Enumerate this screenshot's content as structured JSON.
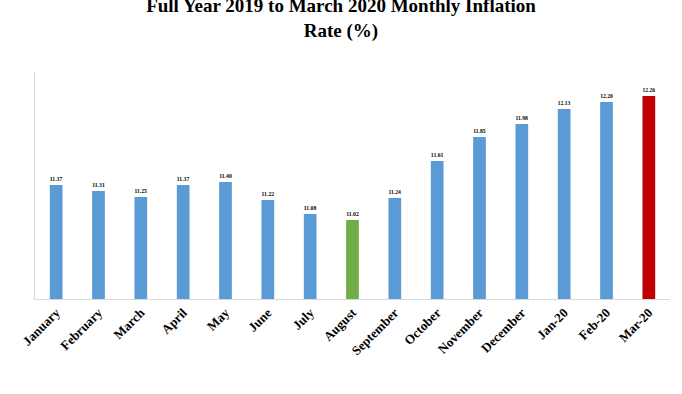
{
  "chart_data": {
    "type": "bar",
    "title": "Full Year 2019 to March 2020 Monthly Inflation Rate (%)",
    "categories": [
      "January",
      "February",
      "March",
      "April",
      "May",
      "June",
      "July",
      "August",
      "September",
      "October",
      "November",
      "December",
      "Jan-20",
      "Feb-20",
      "Mar-20"
    ],
    "values": [
      11.37,
      11.31,
      11.25,
      11.37,
      11.4,
      11.22,
      11.08,
      11.02,
      11.24,
      11.61,
      11.85,
      11.98,
      12.13,
      12.2,
      12.26
    ],
    "value_labels": [
      "11.37",
      "11.31",
      "11.25",
      "11.37",
      "11.40",
      "11.22",
      "11.08",
      "11.02",
      "11.24",
      "11.61",
      "11.85",
      "11.98",
      "12.13",
      "12.20",
      "12.26"
    ],
    "colors": [
      "#5b9bd5",
      "#5b9bd5",
      "#5b9bd5",
      "#5b9bd5",
      "#5b9bd5",
      "#5b9bd5",
      "#5b9bd5",
      "#70ad47",
      "#5b9bd5",
      "#5b9bd5",
      "#5b9bd5",
      "#5b9bd5",
      "#5b9bd5",
      "#5b9bd5",
      "#c00000"
    ],
    "ylim": [
      10.23,
      12.5
    ],
    "grid": false,
    "data_labels": true,
    "tick_labels": "x"
  }
}
